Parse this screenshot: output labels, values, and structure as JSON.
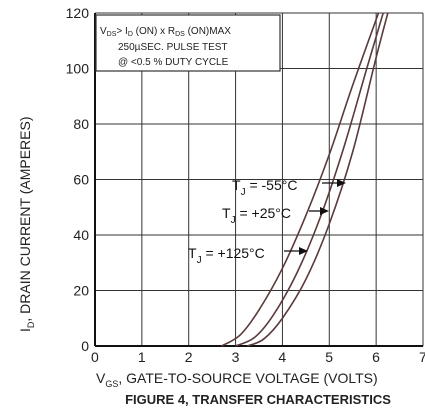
{
  "chart_data": {
    "type": "line",
    "xlabel_main": "V",
    "xlabel_sub": "GS",
    "xlabel_rest": ", GATE-TO-SOURCE VOLTAGE (VOLTS)",
    "ylabel_main": "I",
    "ylabel_sub": "D",
    "ylabel_rest": ", DRAIN CURRENT (AMPERES)",
    "caption": "FIGURE 4, TRANSFER CHARACTERISTICS",
    "xlim": [
      0,
      7
    ],
    "ylim": [
      0,
      120
    ],
    "x_ticks": [
      "0",
      "1",
      "2",
      "3",
      "4",
      "5",
      "6",
      "7"
    ],
    "y_ticks": [
      "0",
      "20",
      "40",
      "60",
      "80",
      "100",
      "120"
    ],
    "grid": true,
    "note": {
      "line1": {
        "v": "V",
        "ds": "DS",
        "gt": "> I",
        "d": "D",
        "on1": " (ON) x  R",
        "ds2": "DS",
        "on2": " (ON)MAX"
      },
      "line2": "250µSEC.  PULSE  TEST",
      "line3": "@ <0.5 % DUTY CYCLE"
    },
    "series": [
      {
        "label_t": "T",
        "label_j": "J",
        "label_rest": " = -55°C",
        "points": [
          [
            3.25,
            0
          ],
          [
            3.6,
            2.5
          ],
          [
            4.0,
            10
          ],
          [
            4.5,
            24
          ],
          [
            5.0,
            44
          ],
          [
            5.5,
            70
          ],
          [
            6.0,
            104
          ],
          [
            6.25,
            120
          ]
        ]
      },
      {
        "label_t": "T",
        "label_j": "J",
        "label_rest": " = +25°C",
        "points": [
          [
            3.0,
            0
          ],
          [
            3.4,
            3
          ],
          [
            3.8,
            11
          ],
          [
            4.3,
            26
          ],
          [
            4.8,
            46
          ],
          [
            5.3,
            71
          ],
          [
            5.8,
            100
          ],
          [
            6.15,
            120
          ]
        ]
      },
      {
        "label_t": "T",
        "label_j": "J",
        "label_rest": " = +125°C",
        "points": [
          [
            2.7,
            0
          ],
          [
            3.1,
            4
          ],
          [
            3.5,
            13
          ],
          [
            4.0,
            28
          ],
          [
            4.5,
            47
          ],
          [
            5.0,
            69
          ],
          [
            5.5,
            94
          ],
          [
            6.05,
            120
          ]
        ]
      }
    ]
  }
}
